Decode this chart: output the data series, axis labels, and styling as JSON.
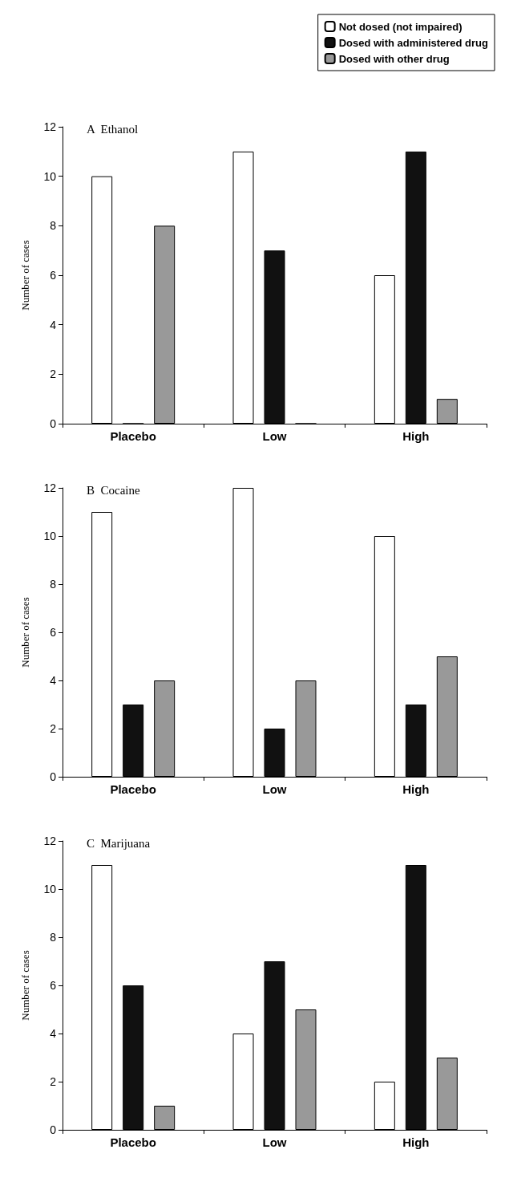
{
  "chart_data": [
    {
      "type": "bar",
      "title": "A  Ethanol",
      "ylabel": "Number of cases",
      "categories": [
        "Placebo",
        "Low",
        "High"
      ],
      "ylim": [
        0,
        12
      ],
      "yticks": [
        0,
        2,
        4,
        6,
        8,
        10,
        12
      ],
      "grid": false,
      "legend": "top right",
      "series": [
        {
          "name": "Not dosed (not impaired)",
          "color": "#ffffff",
          "values": [
            10,
            11,
            6
          ]
        },
        {
          "name": "Dosed with administered drug",
          "color": "#111111",
          "values": [
            0,
            7,
            11
          ]
        },
        {
          "name": "Dosed with other drug",
          "color": "#999999",
          "values": [
            8,
            0,
            1
          ]
        }
      ]
    },
    {
      "type": "bar",
      "title": "B  Cocaine",
      "ylabel": "Number of cases",
      "categories": [
        "Placebo",
        "Low",
        "High"
      ],
      "ylim": [
        0,
        12
      ],
      "yticks": [
        0,
        2,
        4,
        6,
        8,
        10,
        12
      ],
      "grid": false,
      "series": [
        {
          "color": "#ffffff",
          "values": [
            11,
            12,
            10
          ]
        },
        {
          "color": "#111111",
          "values": [
            3,
            2,
            3
          ]
        },
        {
          "color": "#999999",
          "values": [
            4,
            4,
            5
          ]
        }
      ]
    },
    {
      "type": "bar",
      "title": "C  Marijuana",
      "ylabel": "Number of cases",
      "categories": [
        "Placebo",
        "Low",
        "High"
      ],
      "ylim": [
        0,
        12
      ],
      "yticks": [
        0,
        2,
        4,
        6,
        8,
        10,
        12
      ],
      "grid": false,
      "series": [
        {
          "color": "#ffffff",
          "values": [
            11,
            4,
            2
          ]
        },
        {
          "color": "#111111",
          "values": [
            6,
            7,
            11
          ]
        },
        {
          "color": "#999999",
          "values": [
            1,
            5,
            3
          ]
        }
      ]
    }
  ]
}
